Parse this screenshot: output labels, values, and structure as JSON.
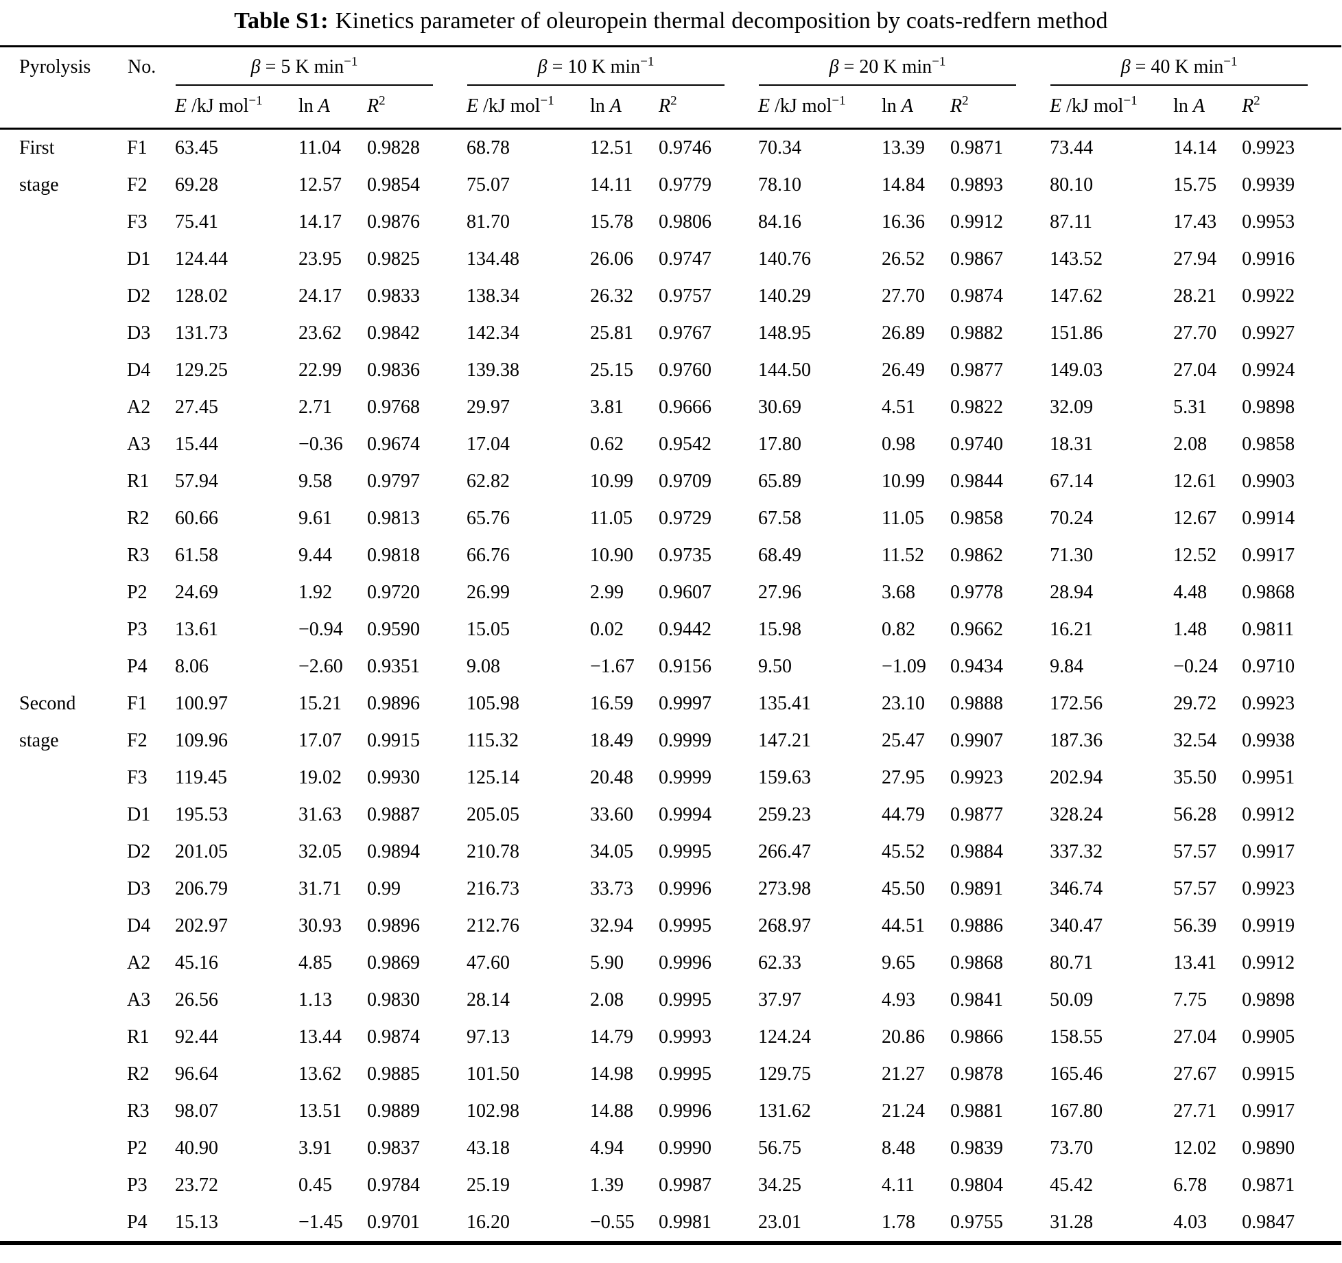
{
  "title": {
    "label": "Table S1:",
    "text": "Kinetics parameter of oleuropein thermal decomposition by coats-redfern method"
  },
  "header": {
    "pyrolysis": "Pyrolysis",
    "no": "No.",
    "groups": [
      {
        "beta": "β",
        "rest": " = 5 K min",
        "exp": "−1"
      },
      {
        "beta": "β",
        "rest": " = 10 K min",
        "exp": "−1"
      },
      {
        "beta": "β",
        "rest": " = 20 K min",
        "exp": "−1"
      },
      {
        "beta": "β",
        "rest": " = 40 K min",
        "exp": "−1"
      }
    ],
    "subcols": {
      "e_it": "E",
      "e_rest": " /kJ mol",
      "e_exp": "−1",
      "lna_pre": "ln ",
      "lna_it": "A",
      "r_it": "R",
      "r_exp": "2"
    }
  },
  "stages": [
    {
      "label": "First stage",
      "rows": [
        {
          "no": "F1",
          "values": [
            "63.45",
            "11.04",
            "0.9828",
            "68.78",
            "12.51",
            "0.9746",
            "70.34",
            "13.39",
            "0.9871",
            "73.44",
            "14.14",
            "0.9923"
          ]
        },
        {
          "no": "F2",
          "values": [
            "69.28",
            "12.57",
            "0.9854",
            "75.07",
            "14.11",
            "0.9779",
            "78.10",
            "14.84",
            "0.9893",
            "80.10",
            "15.75",
            "0.9939"
          ]
        },
        {
          "no": "F3",
          "values": [
            "75.41",
            "14.17",
            "0.9876",
            "81.70",
            "15.78",
            "0.9806",
            "84.16",
            "16.36",
            "0.9912",
            "87.11",
            "17.43",
            "0.9953"
          ]
        },
        {
          "no": "D1",
          "values": [
            "124.44",
            "23.95",
            "0.9825",
            "134.48",
            "26.06",
            "0.9747",
            "140.76",
            "26.52",
            "0.9867",
            "143.52",
            "27.94",
            "0.9916"
          ]
        },
        {
          "no": "D2",
          "values": [
            "128.02",
            "24.17",
            "0.9833",
            "138.34",
            "26.32",
            "0.9757",
            "140.29",
            "27.70",
            "0.9874",
            "147.62",
            "28.21",
            "0.9922"
          ]
        },
        {
          "no": "D3",
          "values": [
            "131.73",
            "23.62",
            "0.9842",
            "142.34",
            "25.81",
            "0.9767",
            "148.95",
            "26.89",
            "0.9882",
            "151.86",
            "27.70",
            "0.9927"
          ]
        },
        {
          "no": "D4",
          "values": [
            "129.25",
            "22.99",
            "0.9836",
            "139.38",
            "25.15",
            "0.9760",
            "144.50",
            "26.49",
            "0.9877",
            "149.03",
            "27.04",
            "0.9924"
          ]
        },
        {
          "no": "A2",
          "values": [
            "27.45",
            "2.71",
            "0.9768",
            "29.97",
            "3.81",
            "0.9666",
            "30.69",
            "4.51",
            "0.9822",
            "32.09",
            "5.31",
            "0.9898"
          ]
        },
        {
          "no": "A3",
          "values": [
            "15.44",
            "−0.36",
            "0.9674",
            "17.04",
            "0.62",
            "0.9542",
            "17.80",
            "0.98",
            "0.9740",
            "18.31",
            "2.08",
            "0.9858"
          ]
        },
        {
          "no": "R1",
          "values": [
            "57.94",
            "9.58",
            "0.9797",
            "62.82",
            "10.99",
            "0.9709",
            "65.89",
            "10.99",
            "0.9844",
            "67.14",
            "12.61",
            "0.9903"
          ]
        },
        {
          "no": "R2",
          "values": [
            "60.66",
            "9.61",
            "0.9813",
            "65.76",
            "11.05",
            "0.9729",
            "67.58",
            "11.05",
            "0.9858",
            "70.24",
            "12.67",
            "0.9914"
          ]
        },
        {
          "no": "R3",
          "values": [
            "61.58",
            "9.44",
            "0.9818",
            "66.76",
            "10.90",
            "0.9735",
            "68.49",
            "11.52",
            "0.9862",
            "71.30",
            "12.52",
            "0.9917"
          ]
        },
        {
          "no": "P2",
          "values": [
            "24.69",
            "1.92",
            "0.9720",
            "26.99",
            "2.99",
            "0.9607",
            "27.96",
            "3.68",
            "0.9778",
            "28.94",
            "4.48",
            "0.9868"
          ]
        },
        {
          "no": "P3",
          "values": [
            "13.61",
            "−0.94",
            "0.9590",
            "15.05",
            "0.02",
            "0.9442",
            "15.98",
            "0.82",
            "0.9662",
            "16.21",
            "1.48",
            "0.9811"
          ]
        },
        {
          "no": "P4",
          "values": [
            "8.06",
            "−2.60",
            "0.9351",
            "9.08",
            "−1.67",
            "0.9156",
            "9.50",
            "−1.09",
            "0.9434",
            "9.84",
            "−0.24",
            "0.9710"
          ]
        }
      ]
    },
    {
      "label": "Second stage",
      "rows": [
        {
          "no": "F1",
          "values": [
            "100.97",
            "15.21",
            "0.9896",
            "105.98",
            "16.59",
            "0.9997",
            "135.41",
            "23.10",
            "0.9888",
            "172.56",
            "29.72",
            "0.9923"
          ]
        },
        {
          "no": "F2",
          "values": [
            "109.96",
            "17.07",
            "0.9915",
            "115.32",
            "18.49",
            "0.9999",
            "147.21",
            "25.47",
            "0.9907",
            "187.36",
            "32.54",
            "0.9938"
          ]
        },
        {
          "no": "F3",
          "values": [
            "119.45",
            "19.02",
            "0.9930",
            "125.14",
            "20.48",
            "0.9999",
            "159.63",
            "27.95",
            "0.9923",
            "202.94",
            "35.50",
            "0.9951"
          ]
        },
        {
          "no": "D1",
          "values": [
            "195.53",
            "31.63",
            "0.9887",
            "205.05",
            "33.60",
            "0.9994",
            "259.23",
            "44.79",
            "0.9877",
            "328.24",
            "56.28",
            "0.9912"
          ]
        },
        {
          "no": "D2",
          "values": [
            "201.05",
            "32.05",
            "0.9894",
            "210.78",
            "34.05",
            "0.9995",
            "266.47",
            "45.52",
            "0.9884",
            "337.32",
            "57.57",
            "0.9917"
          ]
        },
        {
          "no": "D3",
          "values": [
            "206.79",
            "31.71",
            "0.99",
            "216.73",
            "33.73",
            "0.9996",
            "273.98",
            "45.50",
            "0.9891",
            "346.74",
            "57.57",
            "0.9923"
          ]
        },
        {
          "no": "D4",
          "values": [
            "202.97",
            "30.93",
            "0.9896",
            "212.76",
            "32.94",
            "0.9995",
            "268.97",
            "44.51",
            "0.9886",
            "340.47",
            "56.39",
            "0.9919"
          ]
        },
        {
          "no": "A2",
          "values": [
            "45.16",
            "4.85",
            "0.9869",
            "47.60",
            "5.90",
            "0.9996",
            "62.33",
            "9.65",
            "0.9868",
            "80.71",
            "13.41",
            "0.9912"
          ]
        },
        {
          "no": "A3",
          "values": [
            "26.56",
            "1.13",
            "0.9830",
            "28.14",
            "2.08",
            "0.9995",
            "37.97",
            "4.93",
            "0.9841",
            "50.09",
            "7.75",
            "0.9898"
          ]
        },
        {
          "no": "R1",
          "values": [
            "92.44",
            "13.44",
            "0.9874",
            "97.13",
            "14.79",
            "0.9993",
            "124.24",
            "20.86",
            "0.9866",
            "158.55",
            "27.04",
            "0.9905"
          ]
        },
        {
          "no": "R2",
          "values": [
            "96.64",
            "13.62",
            "0.9885",
            "101.50",
            "14.98",
            "0.9995",
            "129.75",
            "21.27",
            "0.9878",
            "165.46",
            "27.67",
            "0.9915"
          ]
        },
        {
          "no": "R3",
          "values": [
            "98.07",
            "13.51",
            "0.9889",
            "102.98",
            "14.88",
            "0.9996",
            "131.62",
            "21.24",
            "0.9881",
            "167.80",
            "27.71",
            "0.9917"
          ]
        },
        {
          "no": "P2",
          "values": [
            "40.90",
            "3.91",
            "0.9837",
            "43.18",
            "4.94",
            "0.9990",
            "56.75",
            "8.48",
            "0.9839",
            "73.70",
            "12.02",
            "0.9890"
          ]
        },
        {
          "no": "P3",
          "values": [
            "23.72",
            "0.45",
            "0.9784",
            "25.19",
            "1.39",
            "0.9987",
            "34.25",
            "4.11",
            "0.9804",
            "45.42",
            "6.78",
            "0.9871"
          ]
        },
        {
          "no": "P4",
          "values": [
            "15.13",
            "−1.45",
            "0.9701",
            "16.20",
            "−0.55",
            "0.9981",
            "23.01",
            "1.78",
            "0.9755",
            "31.28",
            "4.03",
            "0.9847"
          ]
        }
      ]
    }
  ]
}
